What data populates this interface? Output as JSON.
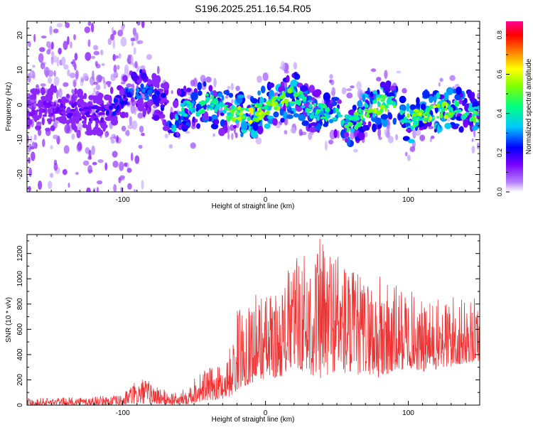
{
  "page_title": "S196.2025.251.16.54.R05",
  "chart_data": [
    {
      "type": "heatmap",
      "title": "S196.2025.251.16.54.R05",
      "xlabel": "Height of straight line (km)",
      "ylabel": "Frequency (Hz)",
      "xlim": [
        -167,
        150
      ],
      "ylim": [
        -25,
        24
      ],
      "x_ticks": [
        -100,
        0,
        100
      ],
      "y_ticks": [
        -20,
        -10,
        0,
        10,
        20
      ],
      "x_tick_labels": [
        "-100",
        "0",
        "100"
      ],
      "y_tick_labels": [
        "-20",
        "-10",
        "0",
        "10",
        "20"
      ],
      "colorbar": {
        "label": "Normalized spectral amplitude",
        "range": [
          0,
          0.87
        ],
        "ticks": [
          0.0,
          0.2,
          0.4,
          0.6,
          0.8
        ],
        "tick_labels": [
          "0.0",
          "0.2",
          "0.4",
          "0.6",
          "0.8"
        ],
        "colormap": [
          "#ffffff",
          "#7a00ff",
          "#0000ff",
          "#00c8ff",
          "#00ff80",
          "#ffff00",
          "#ff8000",
          "#ff0000",
          "#ff0090"
        ]
      },
      "ridge": {
        "x": [
          -160,
          -140,
          -120,
          -110,
          -100,
          -90,
          -80,
          -70,
          -65,
          -60,
          -50,
          -40,
          -30,
          -20,
          -10,
          0,
          10,
          20,
          30,
          40,
          50,
          60,
          70,
          80,
          90,
          95,
          100,
          110,
          120,
          130,
          140,
          148
        ],
        "freq": [
          -1,
          -1,
          -3,
          -2,
          2,
          4,
          3,
          0,
          -7,
          -1,
          -1,
          1,
          -2,
          -3,
          -3,
          -1,
          1,
          3,
          -1,
          -2,
          -3,
          -6,
          -2,
          0,
          1,
          -3,
          -5,
          -3,
          -2,
          -1,
          -2,
          -3
        ],
        "amplitude": [
          0.12,
          0.14,
          0.16,
          0.18,
          0.22,
          0.28,
          0.24,
          0.18,
          0.32,
          0.38,
          0.35,
          0.4,
          0.42,
          0.5,
          0.55,
          0.48,
          0.5,
          0.45,
          0.38,
          0.4,
          0.36,
          0.42,
          0.48,
          0.5,
          0.44,
          0.4,
          0.46,
          0.5,
          0.52,
          0.48,
          0.45,
          0.42
        ]
      },
      "noise_region_x": [
        -167,
        -110
      ]
    },
    {
      "type": "line",
      "xlabel": "Height of straight line (km)",
      "ylabel": "SNR (10 * v/v)",
      "xlim": [
        -167,
        150
      ],
      "ylim": [
        0,
        1350
      ],
      "x_ticks": [
        -100,
        0,
        100
      ],
      "y_ticks": [
        0,
        200,
        400,
        600,
        800,
        1000,
        1200
      ],
      "x_tick_labels": [
        "-100",
        "0",
        "100"
      ],
      "y_tick_labels": [
        "0",
        "200",
        "400",
        "600",
        "800",
        "1000",
        "1200"
      ],
      "series": [
        {
          "name": "SNR",
          "color": "#ee3333",
          "envelope_x": [
            -167,
            -140,
            -100,
            -95,
            -85,
            -70,
            -60,
            -53,
            -45,
            -30,
            -22,
            -20,
            -15,
            -5,
            10,
            20,
            30,
            40,
            50,
            60,
            70,
            80,
            90,
            100,
            110,
            120,
            130,
            140,
            150
          ],
          "envelope_min": [
            0,
            0,
            0,
            10,
            10,
            5,
            5,
            10,
            30,
            50,
            80,
            120,
            150,
            200,
            220,
            300,
            250,
            200,
            280,
            220,
            260,
            200,
            250,
            300,
            260,
            280,
            300,
            330,
            350
          ],
          "envelope_max": [
            60,
            60,
            80,
            160,
            220,
            120,
            90,
            200,
            280,
            320,
            560,
            760,
            830,
            900,
            900,
            1200,
            1240,
            1350,
            1300,
            1100,
            1020,
            1050,
            960,
            940,
            820,
            830,
            900,
            820,
            860
          ]
        }
      ]
    }
  ]
}
